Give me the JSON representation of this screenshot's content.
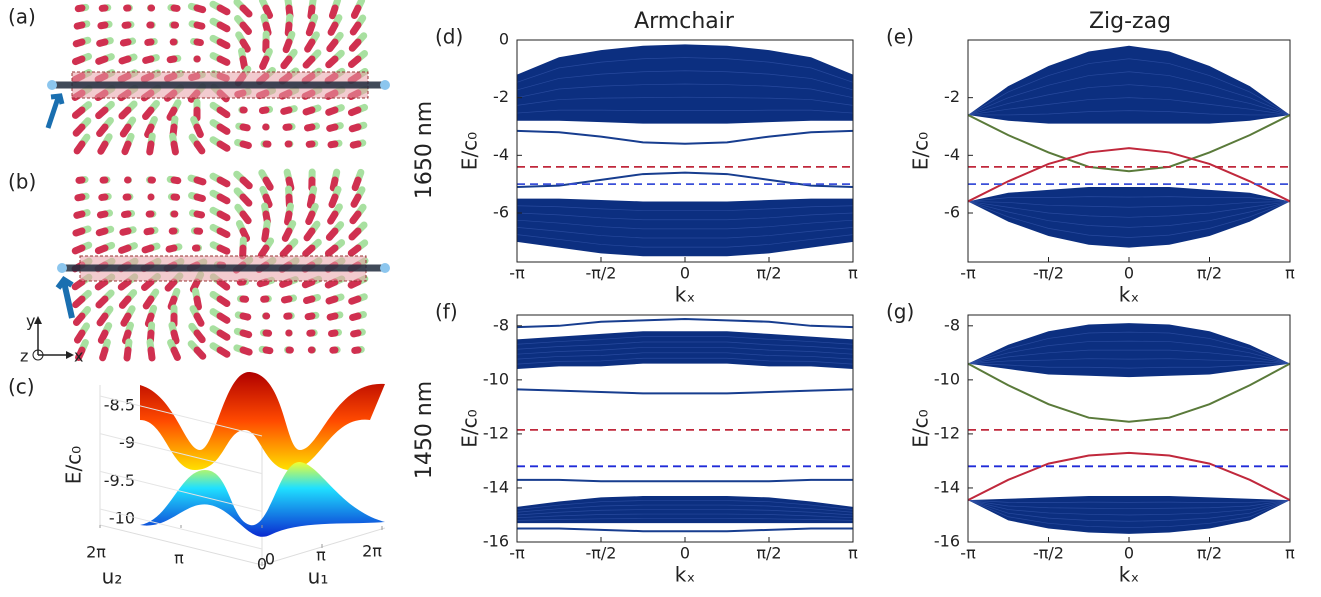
{
  "column_titles": [
    "Armchair",
    "Zig-zag"
  ],
  "row_labels": [
    "1650 nm",
    "1450 nm"
  ],
  "illustrations": [
    {
      "label": "(a)"
    },
    {
      "label": "(b)"
    }
  ],
  "axis_triad": [
    "y",
    "z",
    "x"
  ],
  "chart_data": [
    {
      "type": "surface",
      "label": "(c)",
      "zlabel": "E/c₀",
      "xlabel": "u₁",
      "ylabel": "u₂",
      "zticks": [
        -8.5,
        -9,
        -9.5,
        -10
      ],
      "xticks": [
        0,
        {
          "value": 3.14159,
          "label": "π"
        },
        {
          "value": 6.28319,
          "label": "2π"
        }
      ],
      "yticks": [
        {
          "value": 6.28319,
          "label": "2π"
        },
        {
          "value": 3.14159,
          "label": "π"
        },
        0
      ]
    },
    {
      "type": "line",
      "label": "(d)",
      "xlabel": "kₓ",
      "ylabel": "E/c₀",
      "x": [
        -3.14159,
        -2.35619,
        -1.5708,
        -0.7854,
        0,
        0.7854,
        1.5708,
        2.35619,
        3.14159
      ],
      "xlim": [
        -3.14159,
        3.14159
      ],
      "xticks": [
        {
          "value": -3.14159,
          "label": "-π"
        },
        {
          "value": -1.5708,
          "label": "-π/2"
        },
        0,
        {
          "value": 1.5708,
          "label": "π/2"
        },
        {
          "value": 3.14159,
          "label": "π"
        }
      ],
      "ylim": [
        -7.7,
        0
      ],
      "yticks": [
        -6,
        -4,
        -2,
        0
      ],
      "bands": [
        {
          "color": "#0c2f80",
          "low": [
            -2.8,
            -2.8,
            -2.85,
            -2.9,
            -2.9,
            -2.9,
            -2.85,
            -2.8,
            -2.8
          ],
          "high": [
            -1.2,
            -0.6,
            -0.35,
            -0.2,
            -0.15,
            -0.2,
            -0.35,
            -0.6,
            -1.2
          ]
        },
        {
          "color": "#0c2f80",
          "low": [
            -7.0,
            -7.2,
            -7.4,
            -7.5,
            -7.5,
            -7.5,
            -7.4,
            -7.2,
            -7.0
          ],
          "high": [
            -5.5,
            -5.5,
            -5.55,
            -5.6,
            -5.6,
            -5.6,
            -5.55,
            -5.5,
            -5.5
          ]
        }
      ],
      "series": [
        {
          "color": "#173d8f",
          "values": [
            -3.15,
            -3.2,
            -3.35,
            -3.55,
            -3.6,
            -3.55,
            -3.35,
            -3.2,
            -3.15
          ]
        },
        {
          "color": "#173d8f",
          "values": [
            -5.1,
            -5.05,
            -4.85,
            -4.65,
            -4.6,
            -4.65,
            -4.85,
            -5.05,
            -5.1
          ]
        }
      ],
      "hlines": [
        {
          "value": -4.4,
          "color": "#c0283c"
        },
        {
          "value": -5.0,
          "color": "#3a4fd8"
        }
      ]
    },
    {
      "type": "line",
      "label": "(e)",
      "xlabel": "kₓ",
      "ylabel": "E/c₀",
      "x": [
        -3.14159,
        -2.35619,
        -1.5708,
        -0.7854,
        0,
        0.7854,
        1.5708,
        2.35619,
        3.14159
      ],
      "xlim": [
        -3.14159,
        3.14159
      ],
      "xticks": [
        {
          "value": -3.14159,
          "label": "-π"
        },
        {
          "value": -1.5708,
          "label": "-π/2"
        },
        0,
        {
          "value": 1.5708,
          "label": "π/2"
        },
        {
          "value": 3.14159,
          "label": "π"
        }
      ],
      "ylim": [
        -7.7,
        0
      ],
      "yticks": [
        -6,
        -4,
        -2
      ],
      "bands": [
        {
          "color": "#0c2f80",
          "low": [
            -2.6,
            -2.8,
            -2.9,
            -2.9,
            -2.9,
            -2.9,
            -2.9,
            -2.8,
            -2.6
          ],
          "high": [
            -2.6,
            -1.6,
            -0.9,
            -0.4,
            -0.2,
            -0.4,
            -0.9,
            -1.6,
            -2.6
          ]
        },
        {
          "color": "#0c2f80",
          "low": [
            -5.6,
            -6.3,
            -6.8,
            -7.1,
            -7.2,
            -7.1,
            -6.8,
            -6.3,
            -5.6
          ],
          "high": [
            -5.6,
            -5.3,
            -5.2,
            -5.1,
            -5.1,
            -5.1,
            -5.2,
            -5.3,
            -5.6
          ]
        }
      ],
      "series": [
        {
          "color": "#5a7a3a",
          "values": [
            -2.6,
            -3.3,
            -3.9,
            -4.4,
            -4.55,
            -4.4,
            -3.9,
            -3.3,
            -2.6
          ]
        },
        {
          "color": "#c0283c",
          "values": [
            -5.6,
            -4.9,
            -4.3,
            -3.9,
            -3.75,
            -3.9,
            -4.3,
            -4.9,
            -5.6
          ]
        }
      ],
      "hlines": [
        {
          "value": -4.4,
          "color": "#c0283c"
        },
        {
          "value": -5.0,
          "color": "#3a4fd8"
        }
      ]
    },
    {
      "type": "line",
      "label": "(f)",
      "xlabel": "kₓ",
      "ylabel": "E/c₀",
      "x": [
        -3.14159,
        -2.35619,
        -1.5708,
        -0.7854,
        0,
        0.7854,
        1.5708,
        2.35619,
        3.14159
      ],
      "xlim": [
        -3.14159,
        3.14159
      ],
      "xticks": [
        {
          "value": -3.14159,
          "label": "-π"
        },
        {
          "value": -1.5708,
          "label": "-π/2"
        },
        0,
        {
          "value": 1.5708,
          "label": "π/2"
        },
        {
          "value": 3.14159,
          "label": "π"
        }
      ],
      "ylim": [
        -16,
        -7.6
      ],
      "yticks": [
        -16,
        -14,
        -12,
        -10,
        -8
      ],
      "bands": [
        {
          "color": "#0c2f80",
          "low": [
            -9.6,
            -9.5,
            -9.5,
            -9.4,
            -9.4,
            -9.4,
            -9.5,
            -9.5,
            -9.6
          ],
          "high": [
            -8.5,
            -8.4,
            -8.3,
            -8.2,
            -8.2,
            -8.2,
            -8.3,
            -8.4,
            -8.5
          ]
        },
        {
          "color": "#0c2f80",
          "low": [
            -15.3,
            -15.3,
            -15.3,
            -15.3,
            -15.3,
            -15.3,
            -15.3,
            -15.3,
            -15.3
          ],
          "high": [
            -14.7,
            -14.5,
            -14.35,
            -14.3,
            -14.3,
            -14.3,
            -14.35,
            -14.5,
            -14.7
          ]
        }
      ],
      "series": [
        {
          "color": "#173d8f",
          "values": [
            -8.05,
            -8.0,
            -7.85,
            -7.8,
            -7.75,
            -7.8,
            -7.85,
            -8.0,
            -8.05
          ]
        },
        {
          "color": "#173d8f",
          "values": [
            -10.35,
            -10.4,
            -10.45,
            -10.5,
            -10.5,
            -10.5,
            -10.45,
            -10.4,
            -10.35
          ]
        },
        {
          "color": "#173d8f",
          "values": [
            -13.7,
            -13.7,
            -13.75,
            -13.75,
            -13.75,
            -13.75,
            -13.75,
            -13.7,
            -13.7
          ]
        },
        {
          "color": "#173d8f",
          "values": [
            -15.5,
            -15.5,
            -15.55,
            -15.6,
            -15.6,
            -15.6,
            -15.55,
            -15.5,
            -15.5
          ]
        }
      ],
      "hlines": [
        {
          "value": -11.85,
          "color": "#c0283c"
        },
        {
          "value": -13.2,
          "color": "#1f2ad8"
        }
      ]
    },
    {
      "type": "line",
      "label": "(g)",
      "xlabel": "kₓ",
      "ylabel": "E/c₀",
      "x": [
        -3.14159,
        -2.35619,
        -1.5708,
        -0.7854,
        0,
        0.7854,
        1.5708,
        2.35619,
        3.14159
      ],
      "xlim": [
        -3.14159,
        3.14159
      ],
      "xticks": [
        {
          "value": -3.14159,
          "label": "-π"
        },
        {
          "value": -1.5708,
          "label": "-π/2"
        },
        0,
        {
          "value": 1.5708,
          "label": "π/2"
        },
        {
          "value": 3.14159,
          "label": "π"
        }
      ],
      "ylim": [
        -16,
        -7.6
      ],
      "yticks": [
        -16,
        -14,
        -12,
        -10,
        -8
      ],
      "bands": [
        {
          "color": "#0c2f80",
          "low": [
            -9.4,
            -9.6,
            -9.8,
            -9.85,
            -9.9,
            -9.85,
            -9.8,
            -9.6,
            -9.4
          ],
          "high": [
            -9.4,
            -8.7,
            -8.2,
            -7.95,
            -7.9,
            -7.95,
            -8.2,
            -8.7,
            -9.4
          ]
        },
        {
          "color": "#0c2f80",
          "low": [
            -14.45,
            -15.2,
            -15.5,
            -15.65,
            -15.7,
            -15.65,
            -15.5,
            -15.2,
            -14.45
          ],
          "high": [
            -14.45,
            -14.4,
            -14.35,
            -14.3,
            -14.3,
            -14.3,
            -14.35,
            -14.4,
            -14.45
          ]
        }
      ],
      "series": [
        {
          "color": "#5a7a3a",
          "values": [
            -9.4,
            -10.2,
            -10.9,
            -11.4,
            -11.55,
            -11.4,
            -10.9,
            -10.2,
            -9.4
          ]
        },
        {
          "color": "#c0283c",
          "values": [
            -14.45,
            -13.7,
            -13.1,
            -12.8,
            -12.7,
            -12.8,
            -13.1,
            -13.7,
            -14.45
          ]
        }
      ],
      "hlines": [
        {
          "value": -11.85,
          "color": "#c0283c"
        },
        {
          "value": -13.2,
          "color": "#1f2ad8"
        }
      ]
    }
  ]
}
